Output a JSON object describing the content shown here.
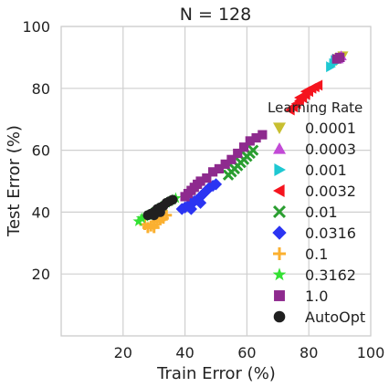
{
  "chart_data": {
    "type": "scatter",
    "title": "N = 128",
    "xlabel": "Train Error (%)",
    "ylabel": "Test Error (%)",
    "xlim": [
      0,
      100
    ],
    "ylim": [
      0,
      100
    ],
    "xticks": [
      20,
      40,
      60,
      80,
      100
    ],
    "yticks": [
      20,
      40,
      60,
      80,
      100
    ],
    "grid": true,
    "legend": {
      "title": "Learning Rate",
      "placement": "right"
    },
    "series": [
      {
        "name": "0.0001",
        "color": "#c8bf30",
        "marker": "triangle-down",
        "points": [
          [
            89,
            89
          ],
          [
            90,
            90
          ],
          [
            90.5,
            90
          ],
          [
            91,
            90.5
          ]
        ]
      },
      {
        "name": "0.0003",
        "color": "#c24ad6",
        "marker": "triangle-up",
        "points": [
          [
            89.5,
            89.5
          ],
          [
            90,
            90
          ],
          [
            90.5,
            90.5
          ]
        ]
      },
      {
        "name": "0.001",
        "color": "#1ec8d2",
        "marker": "triangle-right",
        "points": [
          [
            87,
            87
          ],
          [
            88,
            88
          ],
          [
            88.5,
            89
          ],
          [
            89,
            89.5
          ],
          [
            89.5,
            89
          ]
        ]
      },
      {
        "name": "0.0032",
        "color": "#f5141e",
        "marker": "triangle-left",
        "points": [
          [
            74,
            73
          ],
          [
            75,
            74
          ],
          [
            76,
            75
          ],
          [
            77,
            76
          ],
          [
            78,
            77
          ],
          [
            79,
            78
          ],
          [
            80,
            79
          ],
          [
            81,
            80
          ],
          [
            82,
            80.5
          ],
          [
            83,
            81
          ],
          [
            79,
            79
          ],
          [
            77,
            77
          ]
        ]
      },
      {
        "name": "0.01",
        "color": "#2a9e30",
        "marker": "x",
        "points": [
          [
            55,
            53
          ],
          [
            56,
            54
          ],
          [
            57,
            55
          ],
          [
            58,
            56
          ],
          [
            59,
            57
          ],
          [
            60,
            58
          ],
          [
            61,
            59
          ],
          [
            62,
            60
          ],
          [
            54,
            52
          ]
        ]
      },
      {
        "name": "0.0316",
        "color": "#2b34f2",
        "marker": "diamond",
        "points": [
          [
            39,
            41
          ],
          [
            40,
            41.5
          ],
          [
            41,
            42
          ],
          [
            42,
            43
          ],
          [
            43,
            43.5
          ],
          [
            44,
            44
          ],
          [
            45,
            45
          ],
          [
            46,
            46
          ],
          [
            47,
            47
          ],
          [
            48,
            48
          ],
          [
            49,
            48.5
          ],
          [
            50,
            49
          ],
          [
            45,
            43
          ],
          [
            42,
            41
          ]
        ]
      },
      {
        "name": "0.1",
        "color": "#fbb030",
        "marker": "plus",
        "points": [
          [
            27,
            36
          ],
          [
            28,
            35
          ],
          [
            29,
            35.5
          ],
          [
            30,
            36
          ],
          [
            31,
            37
          ],
          [
            32,
            37.5
          ],
          [
            33,
            38
          ],
          [
            34,
            39
          ],
          [
            30,
            35
          ]
        ]
      },
      {
        "name": "0.3162",
        "color": "#33e033",
        "marker": "star",
        "points": [
          [
            25,
            37
          ],
          [
            26,
            38
          ],
          [
            27,
            38.5
          ],
          [
            28,
            39
          ],
          [
            29,
            39.5
          ],
          [
            30,
            40
          ],
          [
            31,
            41
          ],
          [
            32,
            41.5
          ],
          [
            33,
            42
          ],
          [
            34,
            43
          ],
          [
            35,
            43.5
          ],
          [
            36,
            44
          ],
          [
            37,
            44.5
          ]
        ]
      },
      {
        "name": "1.0",
        "color": "#8e2a8e",
        "marker": "square",
        "points": [
          [
            40,
            45
          ],
          [
            41,
            46
          ],
          [
            42,
            47
          ],
          [
            43,
            48
          ],
          [
            44,
            49
          ],
          [
            45,
            50
          ],
          [
            47,
            51
          ],
          [
            49,
            53
          ],
          [
            51,
            54
          ],
          [
            53,
            55.5
          ],
          [
            55,
            57
          ],
          [
            57,
            59
          ],
          [
            59,
            61
          ],
          [
            61,
            63
          ],
          [
            63,
            64
          ],
          [
            65,
            65
          ],
          [
            89,
            89.5
          ],
          [
            90,
            90
          ]
        ]
      },
      {
        "name": "AutoOpt",
        "color": "#202020",
        "marker": "circle",
        "points": [
          [
            28,
            39
          ],
          [
            29,
            39.5
          ],
          [
            30,
            40
          ],
          [
            31,
            41
          ],
          [
            32,
            41.5
          ],
          [
            33,
            42
          ],
          [
            34,
            43
          ],
          [
            35,
            43.5
          ],
          [
            36,
            44
          ],
          [
            30,
            39
          ],
          [
            32,
            40
          ]
        ]
      }
    ]
  }
}
